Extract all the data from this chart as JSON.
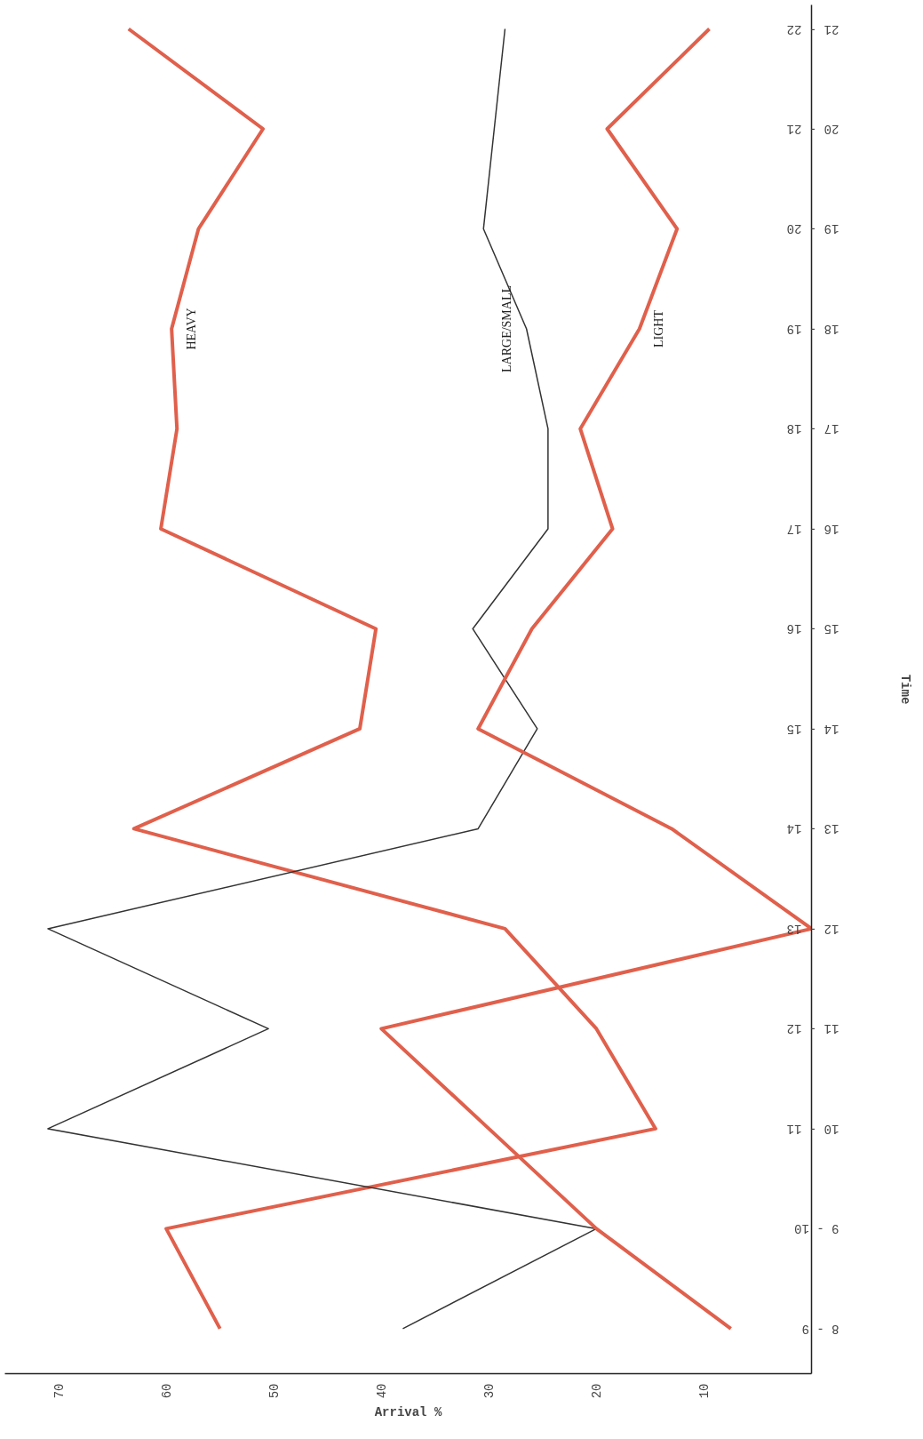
{
  "chart_data": {
    "type": "line",
    "orientation": "horizontal",
    "xlabel": "Arrival %",
    "ylabel": "Time",
    "categories": [
      "21 - 22",
      "20 - 21",
      "19 - 20",
      "18 - 19",
      "17 - 18",
      "16 - 17",
      "15 - 16",
      "14 - 15",
      "13 - 14",
      "12 - 13",
      "11 - 12",
      "10 - 11",
      "9 - 10",
      "8 - 9"
    ],
    "xlim": [
      75,
      0
    ],
    "xticks": [
      70,
      60,
      50,
      40,
      30,
      20,
      10
    ],
    "grid": false,
    "legend": false,
    "series": [
      {
        "name": "HEAVY",
        "color": "#e0604c",
        "values": [
          63.5,
          51,
          57,
          59.5,
          59,
          60.5,
          40.5,
          42,
          63,
          28.5,
          20,
          14.5,
          60,
          55
        ]
      },
      {
        "name": "LARGE/SMALL",
        "color": "#333333",
        "values": [
          28.5,
          29.5,
          30.5,
          26.5,
          24.5,
          24.5,
          31.5,
          25.5,
          31,
          71,
          50.5,
          71,
          20,
          38
        ]
      },
      {
        "name": "LIGHT",
        "color": "#e0604c",
        "values": [
          9.5,
          19,
          12.5,
          16,
          21.5,
          18.5,
          26,
          31,
          13,
          0,
          40,
          30,
          20,
          7.5
        ]
      }
    ]
  }
}
